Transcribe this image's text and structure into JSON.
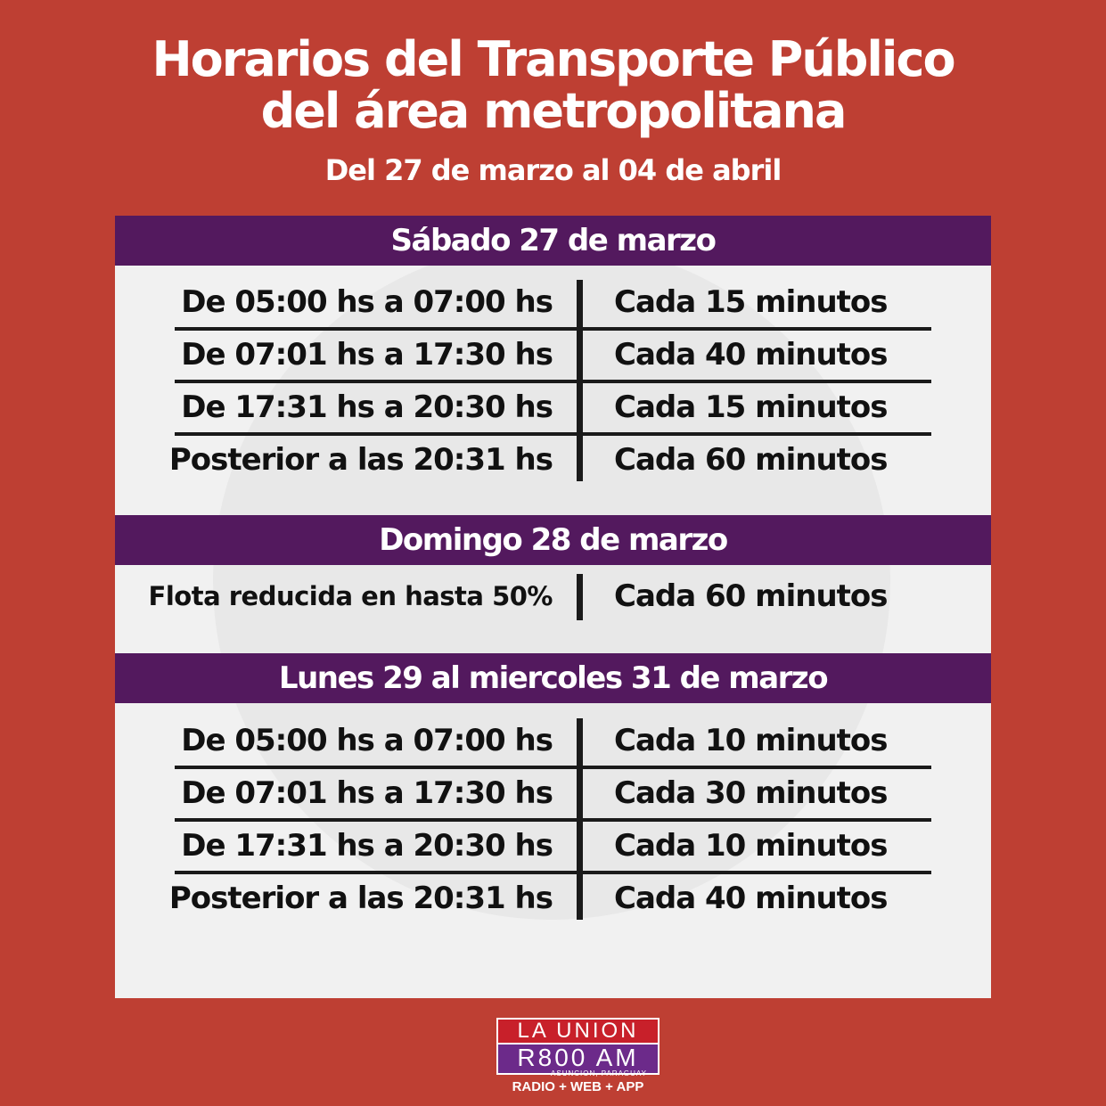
{
  "header": {
    "title_line1": "Horarios del Transporte Público",
    "title_line2": "del área metropolitana",
    "subtitle": "Del 27 de marzo al 04 de abril"
  },
  "sections": [
    {
      "heading": "Sábado 27 de marzo",
      "rows": [
        {
          "time": "De 05:00 hs a 07:00 hs",
          "frequency": "Cada 15 minutos"
        },
        {
          "time": "De 07:01 hs a 17:30 hs",
          "frequency": "Cada 40 minutos"
        },
        {
          "time": "De 17:31 hs a 20:30 hs",
          "frequency": "Cada 15 minutos"
        },
        {
          "time": "Posterior a las 20:31 hs",
          "frequency": "Cada 60 minutos"
        }
      ]
    },
    {
      "heading": "Domingo 28 de marzo",
      "rows": [
        {
          "time": "Flota reducida en hasta 50%",
          "frequency": "Cada 60 minutos"
        }
      ]
    },
    {
      "heading": "Lunes 29 al miercoles 31 de marzo",
      "rows": [
        {
          "time": "De 05:00 hs a 07:00 hs",
          "frequency": "Cada 10 minutos"
        },
        {
          "time": "De 07:01 hs a 17:30 hs",
          "frequency": "Cada 30 minutos"
        },
        {
          "time": "De 17:31 hs a 20:30 hs",
          "frequency": "Cada 10 minutos"
        },
        {
          "time": "Posterior a las 20:31 hs",
          "frequency": "Cada 40 minutos"
        }
      ]
    }
  ],
  "logo": {
    "line1": "LA UNION",
    "line2": "R800 AM",
    "location": "ASUNCION, PARAGUAY",
    "tagline": "RADIO + WEB + APP"
  },
  "colors": {
    "background": "#be3f33",
    "band": "#53195e",
    "panel": "#f1f1f1"
  }
}
